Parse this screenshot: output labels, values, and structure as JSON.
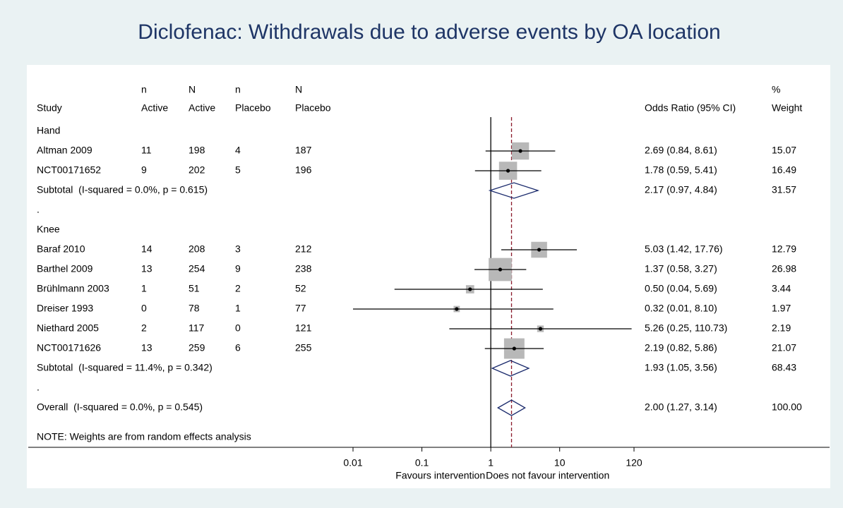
{
  "chart_data": {
    "type": "forest",
    "title": "Diclofenac: Withdrawals due to adverse events by OA location",
    "headers": {
      "study": "Study",
      "columns": [
        [
          "n",
          "Active"
        ],
        [
          "N",
          "Active"
        ],
        [
          "n",
          "Placebo"
        ],
        [
          "N",
          "Placebo"
        ]
      ],
      "estimate": "Odds Ratio (95% CI)",
      "weight": [
        "%",
        "Weight"
      ]
    },
    "rows": [
      {
        "group": "Hand"
      },
      {
        "study": "Altman 2009",
        "counts": [
          11,
          198,
          4,
          187
        ],
        "or": 2.69,
        "ci": [
          0.84,
          8.61
        ],
        "or_label": "2.69 (0.84, 8.61)",
        "weight": 15.07
      },
      {
        "study": "NCT00171652",
        "counts": [
          9,
          202,
          5,
          196
        ],
        "or": 1.78,
        "ci": [
          0.59,
          5.41
        ],
        "or_label": "1.78 (0.59, 5.41)",
        "weight": 16.49
      },
      {
        "subtotal": "Subtotal  (I-squared = 0.0%, p = 0.615)",
        "or": 2.17,
        "ci": [
          0.97,
          4.84
        ],
        "or_label": "2.17 (0.97, 4.84)",
        "weight": 31.57
      },
      {
        "spacer": "."
      },
      {
        "group": "Knee"
      },
      {
        "study": "Baraf 2010",
        "counts": [
          14,
          208,
          3,
          212
        ],
        "or": 5.03,
        "ci": [
          1.42,
          17.76
        ],
        "or_label": "5.03 (1.42, 17.76)",
        "weight": 12.79
      },
      {
        "study": "Barthel 2009",
        "counts": [
          13,
          254,
          9,
          238
        ],
        "or": 1.37,
        "ci": [
          0.58,
          3.27
        ],
        "or_label": "1.37 (0.58, 3.27)",
        "weight": 26.98
      },
      {
        "study": "Brühlmann 2003",
        "counts": [
          1,
          51,
          2,
          52
        ],
        "or": 0.5,
        "ci": [
          0.04,
          5.69
        ],
        "or_label": "0.50 (0.04, 5.69)",
        "weight": 3.44
      },
      {
        "study": "Dreiser 1993",
        "counts": [
          0,
          78,
          1,
          77
        ],
        "or": 0.32,
        "ci": [
          0.01,
          8.1
        ],
        "or_label": "0.32 (0.01, 8.10)",
        "weight": 1.97
      },
      {
        "study": "Niethard 2005",
        "counts": [
          2,
          117,
          0,
          121
        ],
        "or": 5.26,
        "ci": [
          0.25,
          110.73
        ],
        "or_label": "5.26 (0.25, 110.73)",
        "weight": 2.19
      },
      {
        "study": "NCT00171626",
        "counts": [
          13,
          259,
          6,
          255
        ],
        "or": 2.19,
        "ci": [
          0.82,
          5.86
        ],
        "or_label": "2.19 (0.82, 5.86)",
        "weight": 21.07
      },
      {
        "subtotal": "Subtotal  (I-squared = 11.4%, p = 0.342)",
        "or": 1.93,
        "ci": [
          1.05,
          3.56
        ],
        "or_label": "1.93 (1.05, 3.56)",
        "weight": 68.43
      },
      {
        "spacer": "."
      },
      {
        "overall": "Overall  (I-squared = 0.0%, p = 0.545)",
        "or": 2.0,
        "ci": [
          1.27,
          3.14
        ],
        "or_label": "2.00 (1.27, 3.14)",
        "weight": 100,
        "weight_label": "100.00"
      }
    ],
    "note": "NOTE: Weights are from random effects analysis",
    "x_label_left": "Favours intervention",
    "x_label_right": "Does not favour intervention",
    "xscale": "log",
    "xlim": [
      0.01,
      120
    ],
    "xticks": [
      0.01,
      0.1,
      1,
      10,
      120
    ],
    "reference_line": 1,
    "box_color": "#b8b8b8",
    "diamond_color": "#1a2a6c",
    "pooled_line_color": "#8b1a2b"
  }
}
